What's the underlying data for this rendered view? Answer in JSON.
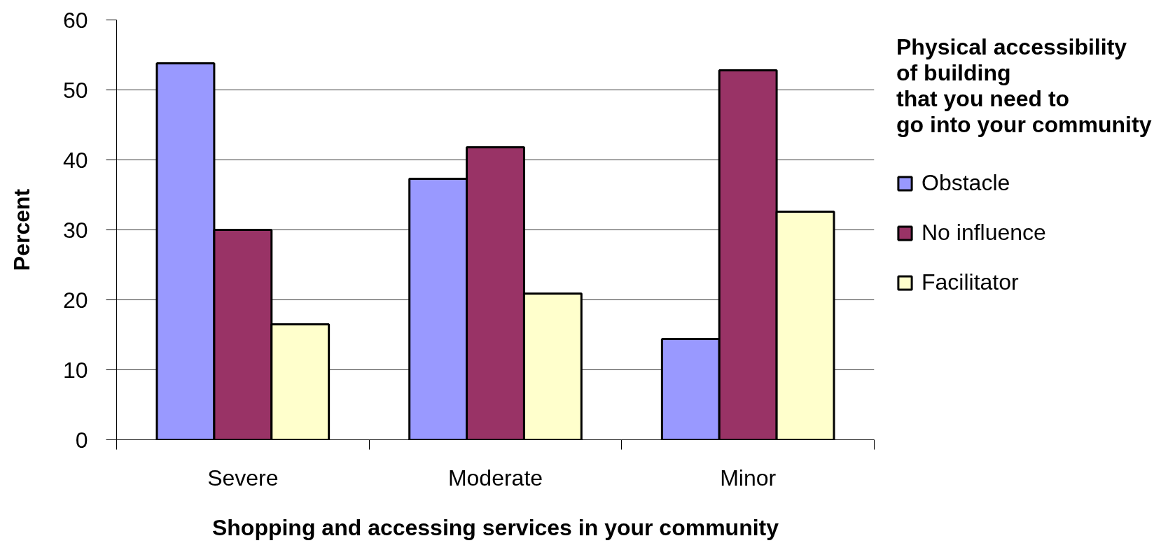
{
  "chart_data": {
    "type": "bar",
    "xlabel": "Shopping and accessing services in your community",
    "ylabel": "Percent",
    "legend_title": "Physical accessibility\nof building\nthat you need to\ngo into your community",
    "categories": [
      "Severe",
      "Moderate",
      "Minor"
    ],
    "series": [
      {
        "name": "Obstacle",
        "color": "#9999ff",
        "values": [
          53.8,
          37.3,
          14.4
        ]
      },
      {
        "name": "No influence",
        "color": "#993366",
        "values": [
          30,
          41.8,
          52.8
        ]
      },
      {
        "name": "Facilitator",
        "color": "#ffffcc",
        "values": [
          16.5,
          20.9,
          32.6
        ]
      }
    ],
    "ylim": [
      0,
      60
    ],
    "yticks": [
      0,
      10,
      20,
      30,
      40,
      50,
      60
    ],
    "grid": "y",
    "legend": "right"
  }
}
